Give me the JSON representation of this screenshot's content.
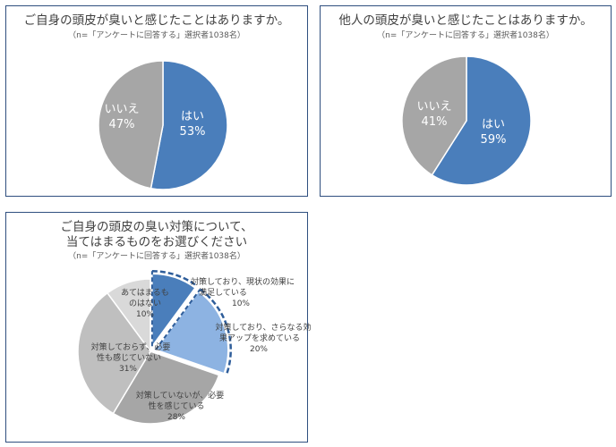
{
  "chart_data": [
    {
      "type": "pie",
      "title": "ご自身の頭皮が臭いと感じたことはありますか。",
      "subtitle": "（n=「アンケートに回答する」選択者1038名）",
      "slices": [
        {
          "label": "はい",
          "value": 53,
          "value_label": "53%",
          "color": "#4a7ebb"
        },
        {
          "label": "いいえ",
          "value": 47,
          "value_label": "47%",
          "color": "#a6a6a6"
        }
      ]
    },
    {
      "type": "pie",
      "title": "他人の頭皮が臭いと感じたことはありますか。",
      "subtitle": "（n=「アンケートに回答する」選択者1038名）",
      "slices": [
        {
          "label": "はい",
          "value": 59,
          "value_label": "59%",
          "color": "#4a7ebb"
        },
        {
          "label": "いいえ",
          "value": 41,
          "value_label": "41%",
          "color": "#a6a6a6"
        }
      ]
    },
    {
      "type": "pie",
      "title_lines": [
        "ご自身の頭皮の臭い対策について、",
        "当てはまるものをお選びください"
      ],
      "subtitle": "（n=「アンケートに回答する」選択者1038名）",
      "slices": [
        {
          "label_lines": [
            "対策しており、現状の効果に",
            "満足している"
          ],
          "value": 10,
          "value_label": "10%",
          "color": "#4a7ebb"
        },
        {
          "label_lines": [
            "対策しており、さらなる効",
            "果アップを求めている"
          ],
          "value": 20,
          "value_label": "20%",
          "color": "#8db3e2"
        },
        {
          "label_lines": [
            "対策していないが、必要",
            "性を感じている"
          ],
          "value": 28,
          "value_label": "28%",
          "color": "#a6a6a6"
        },
        {
          "label_lines": [
            "対策しておらず、必要",
            "性も感じていない"
          ],
          "value": 31,
          "value_label": "31%",
          "color": "#bfbfbf"
        },
        {
          "label_lines": [
            "あてはまるも",
            "のはない"
          ],
          "value": 10,
          "value_label": "10%",
          "color": "#d9d9d9"
        }
      ]
    }
  ]
}
